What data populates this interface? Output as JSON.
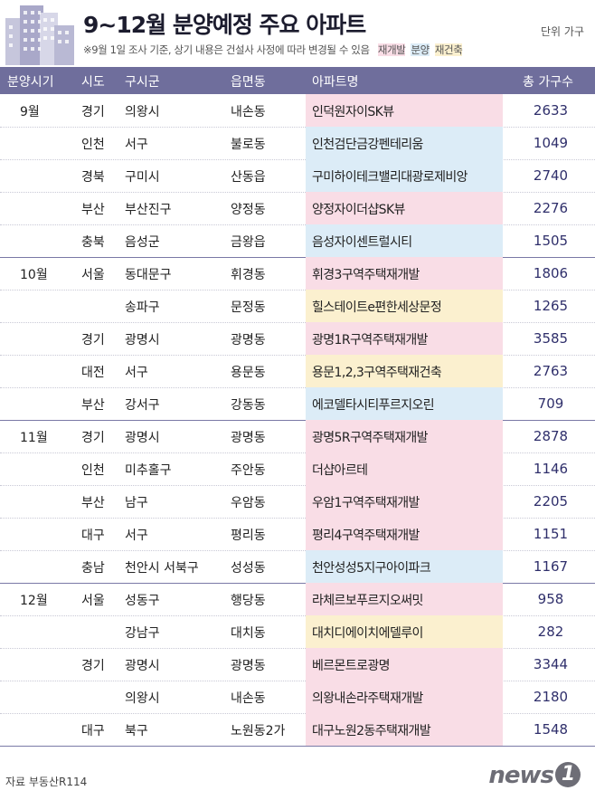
{
  "header": {
    "title": "9~12월 분양예정 주요 아파트",
    "unit": "단위 가구",
    "note": "※9월 1일 조사 기준, 상기 내용은 건설사 사정에 따라 변경될 수 있음",
    "legend": [
      {
        "label": "재개발",
        "color": "#f9dde6"
      },
      {
        "label": "분양",
        "color": "#dcecf7"
      },
      {
        "label": "재건축",
        "color": "#fbf0cf"
      }
    ]
  },
  "columns": [
    "분양시기",
    "시도",
    "구시군",
    "읍면동",
    "아파트명",
    "총 가구수"
  ],
  "colors": {
    "header_bg": "#6f6e9c",
    "redevelopment": "#f9dde6",
    "sale": "#dcecf7",
    "reconstruction": "#fbf0cf",
    "total_text": "#2f2f6b"
  },
  "chart_data": {
    "type": "table",
    "rows": [
      {
        "month": "9월",
        "sido": "경기",
        "gu": "의왕시",
        "dong": "내손동",
        "apt": "인덕원자이SK뷰",
        "type": "재개발",
        "total": "2633"
      },
      {
        "month": "",
        "sido": "인천",
        "gu": "서구",
        "dong": "불로동",
        "apt": "인천검단금강펜테리움",
        "type": "분양",
        "total": "1049"
      },
      {
        "month": "",
        "sido": "경북",
        "gu": "구미시",
        "dong": "산동읍",
        "apt": "구미하이테크밸리대광로제비앙",
        "type": "분양",
        "total": "2740"
      },
      {
        "month": "",
        "sido": "부산",
        "gu": "부산진구",
        "dong": "양정동",
        "apt": "양정자이더샵SK뷰",
        "type": "재개발",
        "total": "2276"
      },
      {
        "month": "",
        "sido": "충북",
        "gu": "음성군",
        "dong": "금왕읍",
        "apt": "음성자이센트럴시티",
        "type": "분양",
        "total": "1505"
      },
      {
        "month": "10월",
        "sido": "서울",
        "gu": "동대문구",
        "dong": "휘경동",
        "apt": "휘경3구역주택재개발",
        "type": "재개발",
        "total": "1806"
      },
      {
        "month": "",
        "sido": "",
        "gu": "송파구",
        "dong": "문정동",
        "apt": "힐스테이트e편한세상문정",
        "type": "재건축",
        "total": "1265"
      },
      {
        "month": "",
        "sido": "경기",
        "gu": "광명시",
        "dong": "광명동",
        "apt": "광명1R구역주택재개발",
        "type": "재개발",
        "total": "3585"
      },
      {
        "month": "",
        "sido": "대전",
        "gu": "서구",
        "dong": "용문동",
        "apt": "용문1,2,3구역주택재건축",
        "type": "재건축",
        "total": "2763"
      },
      {
        "month": "",
        "sido": "부산",
        "gu": "강서구",
        "dong": "강동동",
        "apt": "에코델타시티푸르지오린",
        "type": "분양",
        "total": "709"
      },
      {
        "month": "11월",
        "sido": "경기",
        "gu": "광명시",
        "dong": "광명동",
        "apt": "광명5R구역주택재개발",
        "type": "재개발",
        "total": "2878"
      },
      {
        "month": "",
        "sido": "인천",
        "gu": "미추홀구",
        "dong": "주안동",
        "apt": "더샵아르테",
        "type": "재개발",
        "total": "1146"
      },
      {
        "month": "",
        "sido": "부산",
        "gu": "남구",
        "dong": "우암동",
        "apt": "우암1구역주택재개발",
        "type": "재개발",
        "total": "2205"
      },
      {
        "month": "",
        "sido": "대구",
        "gu": "서구",
        "dong": "평리동",
        "apt": "평리4구역주택재개발",
        "type": "재개발",
        "total": "1151"
      },
      {
        "month": "",
        "sido": "충남",
        "gu": "천안시 서북구",
        "dong": "성성동",
        "apt": "천안성성5지구아이파크",
        "type": "분양",
        "total": "1167"
      },
      {
        "month": "12월",
        "sido": "서울",
        "gu": "성동구",
        "dong": "행당동",
        "apt": "라체르보푸르지오써밋",
        "type": "재개발",
        "total": "958"
      },
      {
        "month": "",
        "sido": "",
        "gu": "강남구",
        "dong": "대치동",
        "apt": "대치디에이치에델루이",
        "type": "재건축",
        "total": "282"
      },
      {
        "month": "",
        "sido": "경기",
        "gu": "광명시",
        "dong": "광명동",
        "apt": "베르몬트로광명",
        "type": "재개발",
        "total": "3344"
      },
      {
        "month": "",
        "sido": "",
        "gu": "의왕시",
        "dong": "내손동",
        "apt": "의왕내손라주택재개발",
        "type": "재개발",
        "total": "2180"
      },
      {
        "month": "",
        "sido": "대구",
        "gu": "북구",
        "dong": "노원동2가",
        "apt": "대구노원2동주택재개발",
        "type": "재개발",
        "total": "1548"
      }
    ]
  },
  "footer": {
    "source": "자료 부동산R114",
    "logo": "news",
    "logo_badge": "1"
  }
}
